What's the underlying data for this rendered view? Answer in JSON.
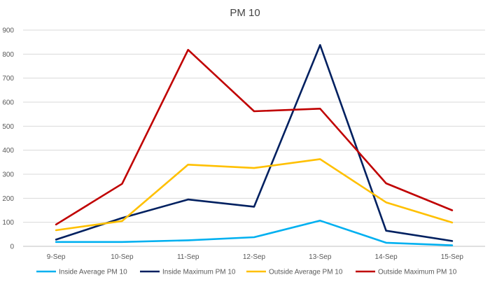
{
  "chart_data": {
    "type": "line",
    "title": "PM 10",
    "xlabel": "",
    "ylabel": "",
    "categories": [
      "9-Sep",
      "10-Sep",
      "11-Sep",
      "12-Sep",
      "13-Sep",
      "14-Sep",
      "15-Sep"
    ],
    "ylim": [
      0,
      900
    ],
    "yticks": [
      0,
      100,
      200,
      300,
      400,
      500,
      600,
      700,
      800,
      900
    ],
    "grid": true,
    "legend_position": "bottom",
    "series": [
      {
        "name": "Inside Average PM 10",
        "color": "#00B0F0",
        "values": [
          18,
          18,
          25,
          38,
          107,
          15,
          4
        ]
      },
      {
        "name": "Inside Maximum PM 10",
        "color": "#002060",
        "values": [
          28,
          118,
          195,
          165,
          838,
          65,
          22
        ]
      },
      {
        "name": "Outside Average PM 10",
        "color": "#FFC000",
        "values": [
          67,
          105,
          340,
          326,
          363,
          183,
          99
        ]
      },
      {
        "name": "Outside Maximum PM 10",
        "color": "#C00000",
        "values": [
          91,
          260,
          818,
          562,
          573,
          262,
          150
        ]
      }
    ]
  }
}
